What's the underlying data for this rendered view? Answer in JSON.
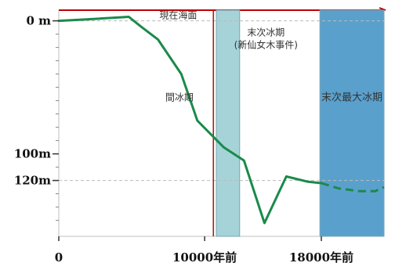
{
  "chart_data": {
    "type": "line",
    "x_label_left": "0",
    "x_ticks": [
      {
        "value": 0,
        "label": "0"
      },
      {
        "value": 10000,
        "label": "10000年前"
      },
      {
        "value": 18000,
        "label": "18000年前"
      }
    ],
    "y_ticks": [
      {
        "value": 0,
        "label": "0 m"
      },
      {
        "value": 100,
        "label": "100m"
      },
      {
        "value": 120,
        "label": "120m"
      }
    ],
    "xlim": [
      0,
      22300
    ],
    "ylim": [
      -8,
      162
    ],
    "series": [
      {
        "style": "solid",
        "points": [
          [
            0,
            0
          ],
          [
            1800,
            -1
          ],
          [
            4800,
            -3
          ],
          [
            5600,
            4
          ],
          [
            6800,
            14
          ],
          [
            8400,
            40
          ],
          [
            9500,
            75
          ],
          [
            11300,
            95
          ],
          [
            12700,
            105
          ],
          [
            14100,
            152
          ],
          [
            15600,
            117
          ],
          [
            17100,
            121
          ],
          [
            18000,
            122
          ]
        ]
      },
      {
        "style": "dashed",
        "points": [
          [
            18000,
            122
          ],
          [
            19200,
            126
          ],
          [
            20600,
            128
          ],
          [
            21700,
            128
          ],
          [
            22300,
            125
          ]
        ]
      }
    ],
    "reference_lines": [
      {
        "axis": "y",
        "value": 0,
        "label": "現在海面"
      },
      {
        "axis": "y",
        "value": 120
      },
      {
        "axis": "x",
        "value": 10600
      }
    ],
    "shaded_regions": [
      {
        "x_start": 10800,
        "x_end": 12400,
        "label_line1": "末次冰期",
        "label_line2": "(新仙女木事件)",
        "color": "#a6d3d8"
      },
      {
        "x_start": 17900,
        "x_end": 22300,
        "label_line1": "末次最大冰期",
        "color": "#5aa0cc"
      }
    ],
    "annotations": [
      {
        "text": "間冰期",
        "x": 7300,
        "y": 60
      }
    ],
    "colors": {
      "line": "#1a8a4a",
      "reference_line": "#a02020",
      "frame_top": "#c00000",
      "dashed_ref": "#bbbbbb"
    }
  }
}
